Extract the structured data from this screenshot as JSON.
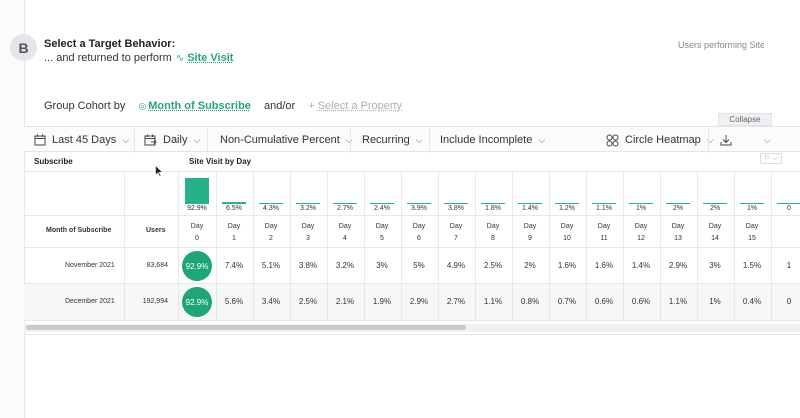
{
  "behavior": {
    "step": "B",
    "title": "Select a Target Behavior:",
    "prefix": "... and returned to perform",
    "event": "Site Visit",
    "right_note": "Users performing Site \\"
  },
  "group": {
    "label": "Group Cohort by",
    "property": "Month of Subscribe",
    "andor": "and/or",
    "add_property": "Select a Property"
  },
  "collapse_label": "Collapse",
  "toolbar": {
    "range": "Last 45 Days",
    "interval": "Daily",
    "measure": "Non-Cumulative Percent",
    "mode": "Recurring",
    "incomplete": "Include Incomplete",
    "viz": "Circle Heatmap"
  },
  "table": {
    "left_header": "Subscribe",
    "chart_header": "Site Visit by Day",
    "col_month": "Month of Subscribe",
    "col_users": "Users",
    "days": [
      {
        "top": "Day",
        "num": "0",
        "summary": "92.9%",
        "pct": 92.9
      },
      {
        "top": "Day",
        "num": "1",
        "summary": "6.5%",
        "pct": 6.5
      },
      {
        "top": "Day",
        "num": "2",
        "summary": "4.3%",
        "pct": 4.3
      },
      {
        "top": "Day",
        "num": "3",
        "summary": "3.2%",
        "pct": 3.2
      },
      {
        "top": "Day",
        "num": "4",
        "summary": "2.7%",
        "pct": 2.7
      },
      {
        "top": "Day",
        "num": "5",
        "summary": "2.4%",
        "pct": 2.4
      },
      {
        "top": "Day",
        "num": "6",
        "summary": "3.9%",
        "pct": 3.9
      },
      {
        "top": "Day",
        "num": "7",
        "summary": "3.8%",
        "pct": 3.8
      },
      {
        "top": "Day",
        "num": "8",
        "summary": "1.8%",
        "pct": 1.8
      },
      {
        "top": "Day",
        "num": "9",
        "summary": "1.4%",
        "pct": 1.4
      },
      {
        "top": "Day",
        "num": "10",
        "summary": "1.2%",
        "pct": 1.2
      },
      {
        "top": "Day",
        "num": "11",
        "summary": "1.1%",
        "pct": 1.1
      },
      {
        "top": "Day",
        "num": "12",
        "summary": "1%",
        "pct": 1
      },
      {
        "top": "Day",
        "num": "13",
        "summary": "2%",
        "pct": 2
      },
      {
        "top": "Day",
        "num": "14",
        "summary": "2%",
        "pct": 2
      },
      {
        "top": "Day",
        "num": "15",
        "summary": "1%",
        "pct": 1
      },
      {
        "top": "",
        "num": "",
        "summary": "0",
        "pct": 0
      }
    ],
    "rows": [
      {
        "month": "November 2021",
        "users": "83,684",
        "values": [
          "92.9%",
          "7.4%",
          "5.1%",
          "3.8%",
          "3.2%",
          "3%",
          "5%",
          "4.9%",
          "2.5%",
          "2%",
          "1.6%",
          "1.6%",
          "1.4%",
          "2.9%",
          "3%",
          "1.5%",
          "1"
        ]
      },
      {
        "month": "December 2021",
        "users": "192,994",
        "values": [
          "92.9%",
          "5.6%",
          "3.4%",
          "2.5%",
          "2.1%",
          "1.9%",
          "2.9%",
          "2.7%",
          "1.1%",
          "0.8%",
          "0.7%",
          "0.6%",
          "0.6%",
          "1.1%",
          "1%",
          "0.4%",
          "0"
        ]
      }
    ]
  },
  "colors": {
    "accent": "#2aa37a",
    "circle": "#1ea57a",
    "bar": "#27b08a"
  }
}
